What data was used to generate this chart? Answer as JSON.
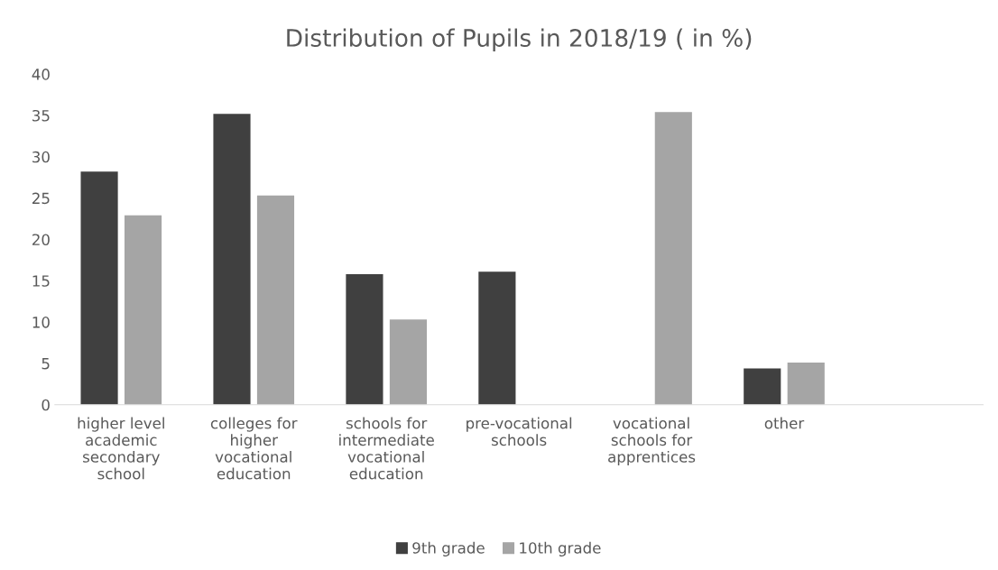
{
  "chart_data": {
    "type": "bar",
    "title": "Distribution of Pupils in 2018/19 ( in %)",
    "categories": [
      "higher level academic secondary school",
      "colleges for higher vocational education",
      "schools for intermediate vocational education",
      "pre-vocational schools",
      "vocational schools for apprentices",
      "other",
      null
    ],
    "series": [
      {
        "name": "9th grade",
        "color": "#404040",
        "values": [
          28.2,
          35.2,
          15.8,
          16.1,
          null,
          4.4,
          null
        ]
      },
      {
        "name": "10th grade",
        "color": "#a5a5a5",
        "values": [
          22.9,
          25.3,
          10.3,
          null,
          35.4,
          5.1,
          null
        ]
      }
    ],
    "ylim": [
      0,
      40
    ],
    "yticks": [
      0,
      5,
      10,
      15,
      20,
      25,
      30,
      35,
      40
    ],
    "grid": false,
    "legend": "bottom"
  }
}
